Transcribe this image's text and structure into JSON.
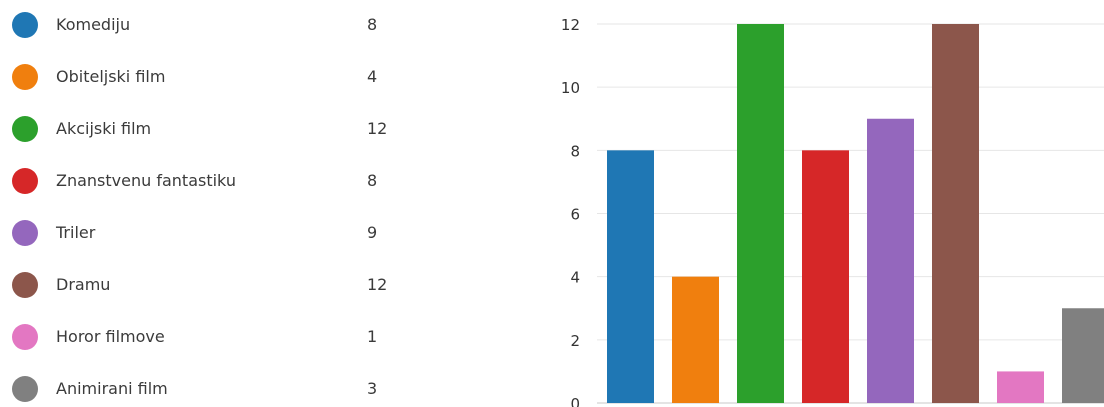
{
  "legend": {
    "items": [
      {
        "label": "Komediju",
        "value": "8",
        "color": "#1f77b4"
      },
      {
        "label": "Obiteljski film",
        "value": "4",
        "color": "#f07f0e"
      },
      {
        "label": "Akcijski film",
        "value": "12",
        "color": "#2ca02c"
      },
      {
        "label": "Znanstvenu fantastiku",
        "value": "8",
        "color": "#d62728"
      },
      {
        "label": "Triler",
        "value": "9",
        "color": "#9467bd"
      },
      {
        "label": "Dramu",
        "value": "12",
        "color": "#8c564b"
      },
      {
        "label": "Horor filmove",
        "value": "1",
        "color": "#e377c2"
      },
      {
        "label": "Animirani film",
        "value": "3",
        "color": "#808080"
      }
    ]
  },
  "chart_data": {
    "type": "bar",
    "categories": [
      "Komediju",
      "Obiteljski film",
      "Akcijski film",
      "Znanstvenu fantastiku",
      "Triler",
      "Dramu",
      "Horor filmove",
      "Animirani film"
    ],
    "values": [
      8,
      4,
      12,
      8,
      9,
      12,
      1,
      3
    ],
    "colors": [
      "#1f77b4",
      "#f07f0e",
      "#2ca02c",
      "#d62728",
      "#9467bd",
      "#8c564b",
      "#e377c2",
      "#808080"
    ],
    "ylim": [
      0,
      12
    ],
    "yticks": [
      "0",
      "2",
      "4",
      "6",
      "8",
      "10",
      "12"
    ],
    "grid": true,
    "legend_placement": "left"
  }
}
